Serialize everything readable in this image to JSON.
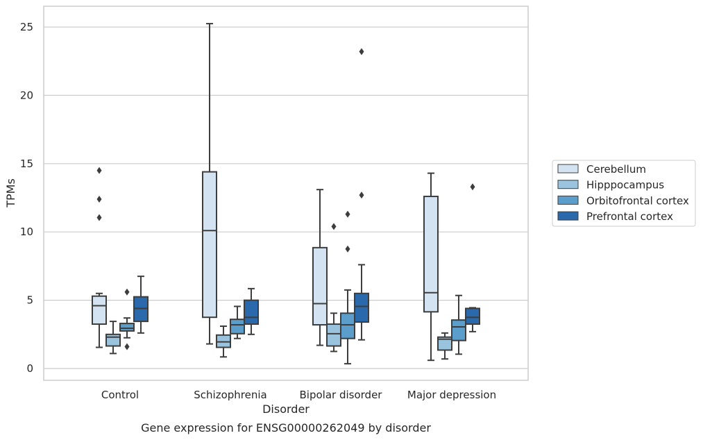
{
  "chart_data": {
    "type": "box",
    "title": "",
    "caption": "Gene expression for ENSG00000262049 by disorder",
    "xlabel": "Disorder",
    "ylabel": "TPMs",
    "ylim": [
      -0.8,
      26.5
    ],
    "yticks": [
      0,
      5,
      10,
      15,
      20,
      25
    ],
    "grid": true,
    "legend_position": "right",
    "categories": [
      "Control",
      "Schizophrenia",
      "Bipolar disorder",
      "Major depression"
    ],
    "series": [
      {
        "name": "Cerebellum",
        "color": "#d4e3f2",
        "boxes": [
          {
            "whislo": 1.55,
            "q1": 3.25,
            "med": 4.6,
            "q3": 5.3,
            "whishi": 5.5,
            "fliers": [
              11.05,
              12.4,
              14.5
            ]
          },
          {
            "whislo": 1.8,
            "q1": 3.75,
            "med": 10.1,
            "q3": 14.4,
            "whishi": 25.25,
            "fliers": []
          },
          {
            "whislo": 1.7,
            "q1": 3.2,
            "med": 4.75,
            "q3": 8.85,
            "whishi": 13.1,
            "fliers": []
          },
          {
            "whislo": 0.6,
            "q1": 4.15,
            "med": 5.55,
            "q3": 12.6,
            "whishi": 14.3,
            "fliers": []
          }
        ]
      },
      {
        "name": "Hipppocampus",
        "color": "#9ac3dd",
        "boxes": [
          {
            "whislo": 1.1,
            "q1": 1.65,
            "med": 2.3,
            "q3": 2.5,
            "whishi": 3.45,
            "fliers": []
          },
          {
            "whislo": 0.85,
            "q1": 1.55,
            "med": 1.95,
            "q3": 2.45,
            "whishi": 3.1,
            "fliers": []
          },
          {
            "whislo": 1.25,
            "q1": 1.65,
            "med": 2.55,
            "q3": 3.25,
            "whishi": 4.05,
            "fliers": [
              10.4
            ]
          },
          {
            "whislo": 0.7,
            "q1": 1.35,
            "med": 2.15,
            "q3": 2.3,
            "whishi": 2.6,
            "fliers": []
          }
        ]
      },
      {
        "name": "Orbitofrontal cortex",
        "color": "#5b9dcb",
        "boxes": [
          {
            "whislo": 2.25,
            "q1": 2.75,
            "med": 2.95,
            "q3": 3.3,
            "whishi": 3.7,
            "fliers": [
              5.6,
              1.6
            ]
          },
          {
            "whislo": 2.2,
            "q1": 2.55,
            "med": 3.2,
            "q3": 3.6,
            "whishi": 4.55,
            "fliers": []
          },
          {
            "whislo": 0.35,
            "q1": 2.2,
            "med": 3.2,
            "q3": 4.05,
            "whishi": 5.75,
            "fliers": [
              8.75,
              11.3
            ]
          },
          {
            "whislo": 1.05,
            "q1": 2.05,
            "med": 3.05,
            "q3": 3.55,
            "whishi": 5.35,
            "fliers": []
          }
        ]
      },
      {
        "name": "Prefrontal cortex",
        "color": "#2a69ab",
        "boxes": [
          {
            "whislo": 2.6,
            "q1": 3.45,
            "med": 4.4,
            "q3": 5.25,
            "whishi": 6.75,
            "fliers": []
          },
          {
            "whislo": 2.5,
            "q1": 3.25,
            "med": 3.75,
            "q3": 5.0,
            "whishi": 5.85,
            "fliers": []
          },
          {
            "whislo": 2.1,
            "q1": 3.4,
            "med": 4.55,
            "q3": 5.5,
            "whishi": 7.6,
            "fliers": [
              12.7,
              23.2
            ]
          },
          {
            "whislo": 2.7,
            "q1": 3.25,
            "med": 3.75,
            "q3": 4.4,
            "whishi": 4.45,
            "fliers": [
              13.3
            ]
          }
        ]
      }
    ]
  }
}
